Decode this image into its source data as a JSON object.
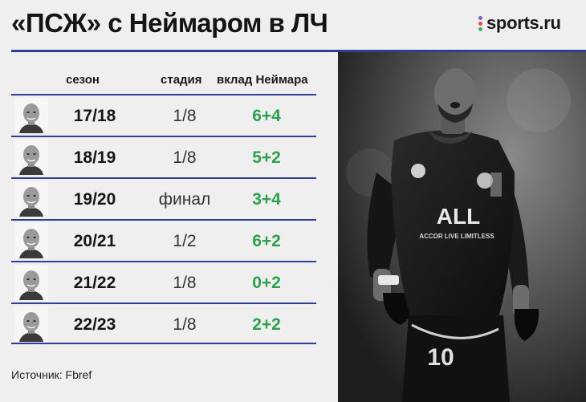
{
  "title": "«ПСЖ» с Неймаром в ЛЧ",
  "logo": {
    "text": "sports.ru",
    "dot_colors": [
      "#7b61c8",
      "#e24b4b",
      "#3bb55a"
    ]
  },
  "colors": {
    "accent": "#2b3f95",
    "green": "#2ca04c"
  },
  "table": {
    "headers": {
      "season": "сезон",
      "stage": "стадия",
      "contribution": "вклад Неймара"
    },
    "rows": [
      {
        "season": "17/18",
        "stage": "1/8",
        "contribution": "6+4"
      },
      {
        "season": "18/19",
        "stage": "1/8",
        "contribution": "5+2"
      },
      {
        "season": "19/20",
        "stage": "финал",
        "contribution": "3+4"
      },
      {
        "season": "20/21",
        "stage": "1/2",
        "contribution": "6+2"
      },
      {
        "season": "21/22",
        "stage": "1/8",
        "contribution": "0+2"
      },
      {
        "season": "22/23",
        "stage": "1/8",
        "contribution": "2+2"
      }
    ]
  },
  "source": "Источник: Fbref",
  "photo": {
    "sponsor_text": "ACCOR LIVE LIMITLESS",
    "club_text": "ALL",
    "number": "10"
  }
}
